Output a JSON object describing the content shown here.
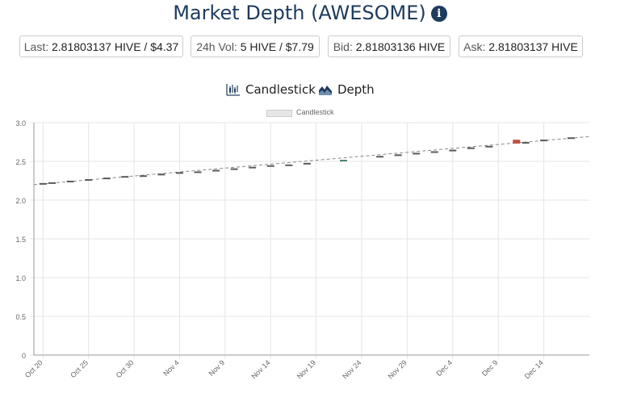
{
  "header": {
    "title": "Market Depth (AWESOME)",
    "info_icon": "info-icon",
    "info_glyph": "i"
  },
  "stats": [
    {
      "key": "Last:",
      "value": "2.81803137 HIVE / $4.37"
    },
    {
      "key": "24h Vol:",
      "value": "5 HIVE / $7.79"
    },
    {
      "key": "Bid:",
      "value": "2.81803136 HIVE"
    },
    {
      "key": "Ask:",
      "value": "2.81803137 HIVE"
    }
  ],
  "tabs": [
    {
      "label": "Candlestick",
      "icon": "candlestick-icon"
    },
    {
      "label": "Depth",
      "icon": "depth-chart-icon"
    }
  ],
  "colors": {
    "up": "#4f7f6a",
    "down": "#c0513e",
    "flat": "#5a5a5a",
    "grid": "#e5e5e5",
    "accent": "#1d3b5c"
  },
  "chart_data": {
    "type": "candlestick",
    "title": "",
    "legend": [
      "Candlestick"
    ],
    "legend_position": "top-center",
    "grid": true,
    "xlabel": "",
    "ylabel": "",
    "ylim": [
      0,
      3.0
    ],
    "yticks": [
      "0",
      "0.5",
      "1.0",
      "1.5",
      "2.0",
      "2.5",
      "3.0"
    ],
    "xlim": [
      "2024-10-19",
      "2024-12-19"
    ],
    "xticks": [
      "Oct 20",
      "Oct 25",
      "Oct 30",
      "Nov 4",
      "Nov 9",
      "Nov 14",
      "Nov 19",
      "Nov 24",
      "Nov 29",
      "Dec 4",
      "Dec 9",
      "Dec 14"
    ],
    "series": [
      {
        "values": [
          {
            "x": "2024-10-20",
            "y": 2.21
          },
          {
            "x": "2024-10-21",
            "y": 2.22
          },
          {
            "x": "2024-10-23",
            "y": 2.24
          },
          {
            "x": "2024-10-25",
            "y": 2.26
          },
          {
            "x": "2024-10-27",
            "y": 2.28
          },
          {
            "x": "2024-10-29",
            "y": 2.3
          },
          {
            "x": "2024-10-31",
            "y": 2.31
          },
          {
            "x": "2024-11-02",
            "y": 2.33
          },
          {
            "x": "2024-11-04",
            "y": 2.35
          },
          {
            "x": "2024-11-06",
            "y": 2.36
          },
          {
            "x": "2024-11-08",
            "y": 2.38
          },
          {
            "x": "2024-11-10",
            "y": 2.4
          },
          {
            "x": "2024-11-12",
            "y": 2.42
          },
          {
            "x": "2024-11-14",
            "y": 2.44
          },
          {
            "x": "2024-11-16",
            "y": 2.45
          },
          {
            "x": "2024-11-18",
            "y": 2.47
          },
          {
            "x": "2024-11-22",
            "y": 2.51,
            "open": 2.5,
            "close": 2.52,
            "dir": "up"
          },
          {
            "x": "2024-11-26",
            "y": 2.56
          },
          {
            "x": "2024-11-28",
            "y": 2.58
          },
          {
            "x": "2024-11-30",
            "y": 2.6
          },
          {
            "x": "2024-12-02",
            "y": 2.62
          },
          {
            "x": "2024-12-04",
            "y": 2.64
          },
          {
            "x": "2024-12-06",
            "y": 2.67
          },
          {
            "x": "2024-12-08",
            "y": 2.69
          },
          {
            "x": "2024-12-11",
            "y": 2.75,
            "open": 2.78,
            "close": 2.73,
            "dir": "down"
          },
          {
            "x": "2024-12-12",
            "y": 2.74
          },
          {
            "x": "2024-12-14",
            "y": 2.77
          },
          {
            "x": "2024-12-17",
            "y": 2.8
          }
        ]
      }
    ]
  }
}
